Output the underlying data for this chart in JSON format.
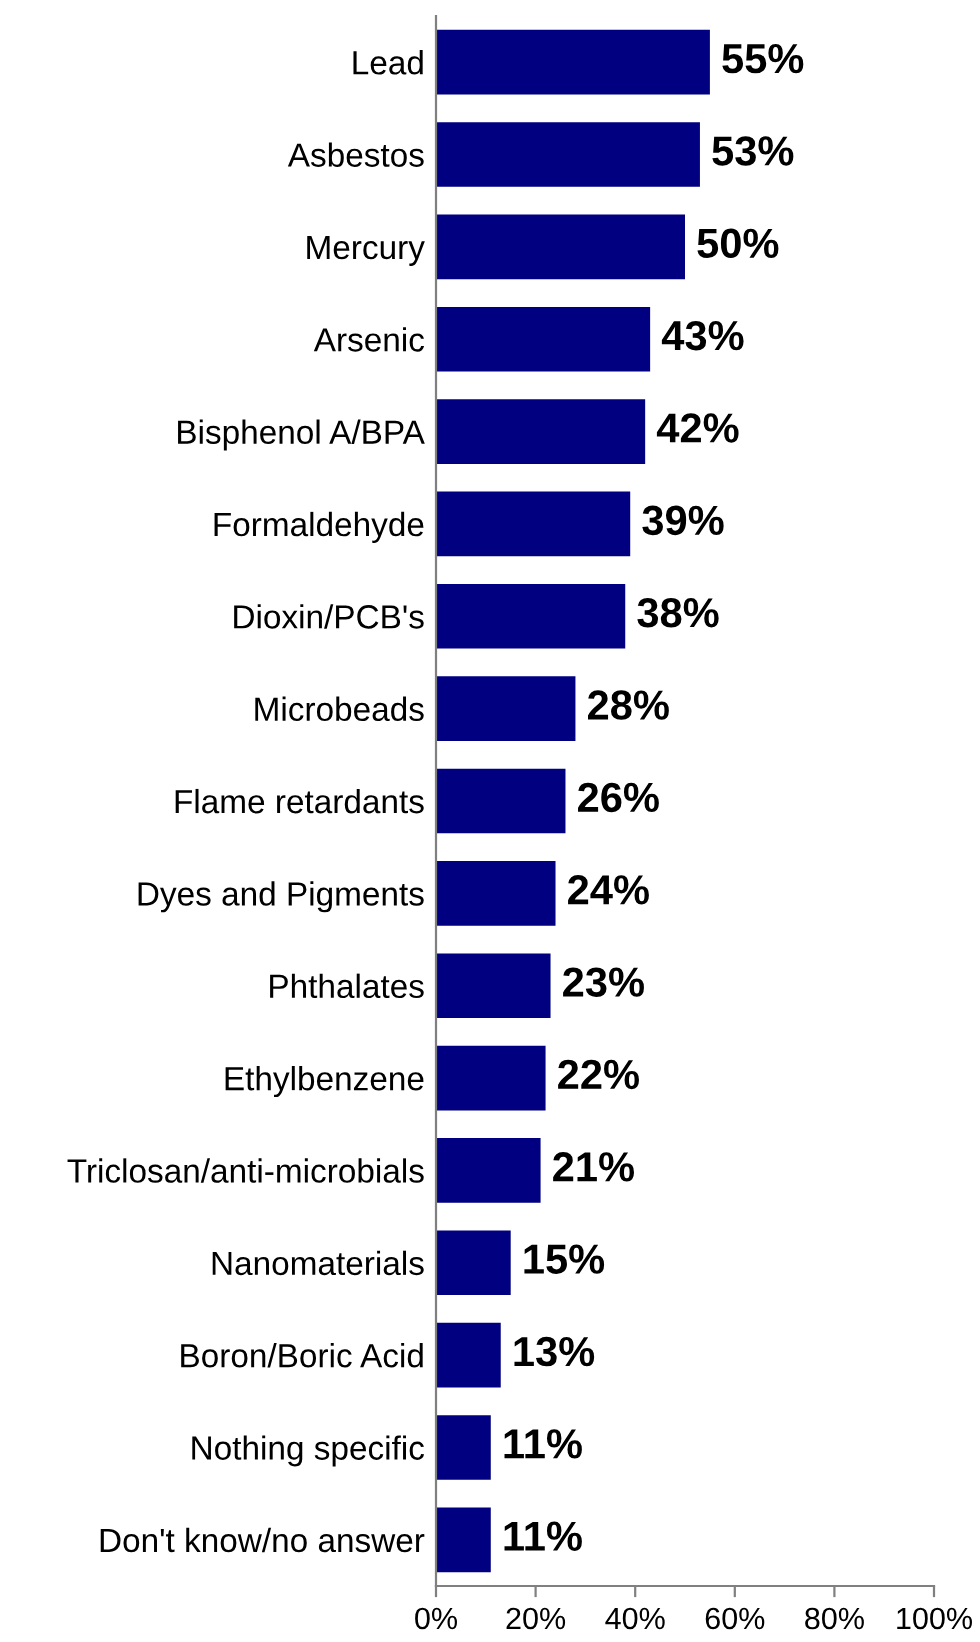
{
  "chart_data": {
    "type": "bar",
    "orientation": "horizontal",
    "categories": [
      "Lead",
      "Asbestos",
      "Mercury",
      "Arsenic",
      "Bisphenol A/BPA",
      "Formaldehyde",
      "Dioxin/PCB's",
      "Microbeads",
      "Flame retardants",
      "Dyes and Pigments",
      "Phthalates",
      "Ethylbenzene",
      "Triclosan/anti-microbials",
      "Nanomaterials",
      "Boron/Boric Acid",
      "Nothing specific",
      "Don't know/no answer"
    ],
    "values": [
      55,
      53,
      50,
      43,
      42,
      39,
      38,
      28,
      26,
      24,
      23,
      22,
      21,
      15,
      13,
      11,
      11
    ],
    "color": "#000080",
    "value_labels": [
      "55%",
      "53%",
      "50%",
      "43%",
      "42%",
      "39%",
      "38%",
      "28%",
      "26%",
      "24%",
      "23%",
      "22%",
      "21%",
      "15%",
      "13%",
      "11%",
      "11%"
    ],
    "xlim": [
      0,
      100
    ],
    "xticks": [
      {
        "value": 0,
        "label": "0%"
      },
      {
        "value": 20,
        "label": "20%"
      },
      {
        "value": 40,
        "label": "40%"
      },
      {
        "value": 60,
        "label": "60%"
      },
      {
        "value": 80,
        "label": "80%"
      },
      {
        "value": 100,
        "label": "100%"
      }
    ],
    "grid": false
  }
}
